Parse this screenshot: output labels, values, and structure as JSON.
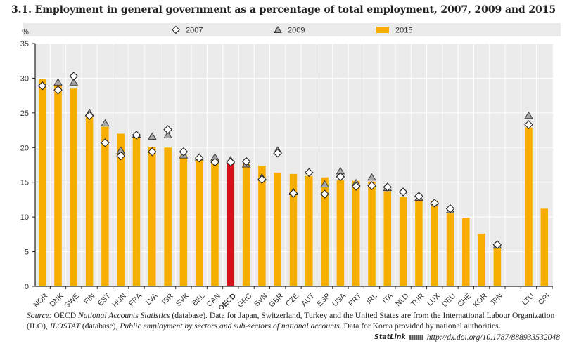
{
  "title": "3.1. Employment in general government as a percentage of total employment, 2007, 2009 and 2015",
  "colors": {
    "bar": "#F7AE00",
    "oecd_bar": "#D3121B",
    "marker_2009": "#A6A6A6",
    "marker_2007": "#FFFFFF",
    "plot_bg": "#EBEBEB",
    "grid": "#FFFFFF"
  },
  "chart_data": {
    "type": "bar",
    "title": "3.1. Employment in general government as a percentage of total employment, 2007, 2009 and 2015",
    "ylabel": "%",
    "xlabel": "",
    "ylim": [
      0,
      35
    ],
    "yticks": [
      0,
      5,
      10,
      15,
      20,
      25,
      30,
      35
    ],
    "grid": true,
    "legend_position": "top",
    "legend": [
      {
        "name": "2007",
        "marker": "diamond"
      },
      {
        "name": "2009",
        "marker": "triangle"
      },
      {
        "name": "2015",
        "marker": "bar"
      }
    ],
    "categories": [
      "NOR",
      "DNK",
      "SWE",
      "FIN",
      "EST",
      "HUN",
      "FRA",
      "LVA",
      "ISR",
      "SVK",
      "BEL",
      "CAN",
      "OECD",
      "GRC",
      "SVN",
      "GBR",
      "CZE",
      "AUT",
      "ESP",
      "USA",
      "PRT",
      "IRL",
      "ITA",
      "NLD",
      "TUR",
      "LUX",
      "DEU",
      "CHE",
      "KOR",
      "JPN",
      "",
      "LTU",
      "CRI"
    ],
    "highlight_category": "OECD",
    "series": [
      {
        "name": "2015",
        "type": "bar",
        "values": [
          29.9,
          29.1,
          28.5,
          24.8,
          23.0,
          22.0,
          21.5,
          20.1,
          20.0,
          18.9,
          18.4,
          18.2,
          18.0,
          17.7,
          17.4,
          16.4,
          16.2,
          15.9,
          15.7,
          15.3,
          15.2,
          15.1,
          13.7,
          12.9,
          12.5,
          12.3,
          10.5,
          9.9,
          7.6,
          5.7,
          null,
          22.9,
          11.2
        ]
      },
      {
        "name": "2007",
        "type": "diamond",
        "values": [
          28.9,
          28.3,
          30.3,
          24.6,
          20.7,
          18.8,
          21.8,
          19.4,
          22.6,
          19.4,
          18.5,
          17.9,
          17.9,
          18.0,
          15.4,
          19.2,
          13.4,
          16.4,
          13.3,
          15.8,
          14.4,
          14.5,
          14.3,
          13.6,
          13.0,
          12.0,
          11.2,
          null,
          null,
          6.0,
          null,
          23.3,
          null
        ]
      },
      {
        "name": "2009",
        "type": "triangle",
        "values": [
          null,
          29.4,
          29.4,
          25.0,
          23.5,
          19.6,
          21.9,
          21.6,
          21.8,
          18.9,
          18.6,
          18.6,
          18.2,
          17.6,
          15.7,
          19.6,
          13.6,
          null,
          14.7,
          16.6,
          14.9,
          15.7,
          14.2,
          null,
          12.8,
          12.0,
          11.0,
          null,
          null,
          5.9,
          null,
          24.6,
          null
        ]
      }
    ]
  },
  "source": {
    "label": "Source:",
    "part1": " OECD ",
    "db1": "National Accounts Statistics",
    "part2": " (database). Data for Japan, Switzerland, Turkey and the United States are from the International Labour Organization (ILO), ",
    "db2": "ILOSTAT",
    "part3": " (database), ",
    "pub": "Public employment by sectors and sub-sectors of national accounts",
    "part4": ". Data for Korea provided by national authorities."
  },
  "statlink": {
    "label": "StatLink",
    "url": "http://dx.doi.org/10.1787/888933532048"
  }
}
